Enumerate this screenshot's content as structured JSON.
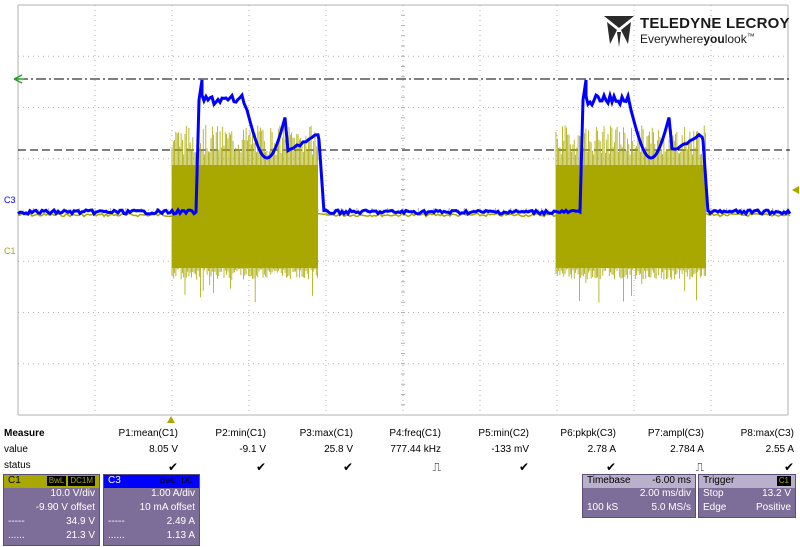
{
  "brand": {
    "name": "TELEDYNE LECROY",
    "tagline_pre": "Everywhere",
    "tagline_bold": "you",
    "tagline_post": "look",
    "tm": "™"
  },
  "channels": {
    "c3_label": "C3",
    "c1_label": "C1",
    "c1_color": "#a8a800",
    "c3_color": "#0000ff"
  },
  "measure": {
    "header": "Measure",
    "row_labels": {
      "value": "value",
      "status": "status"
    },
    "params": [
      {
        "name": "P1:mean(C1)",
        "value": "8.05 V",
        "status": "✔"
      },
      {
        "name": "P2:min(C1)",
        "value": "-9.1 V",
        "status": "✔"
      },
      {
        "name": "P3:max(C1)",
        "value": "25.8 V",
        "status": "✔"
      },
      {
        "name": "P4:freq(C1)",
        "value": "777.44 kHz",
        "status": "⎍"
      },
      {
        "name": "P5:min(C2)",
        "value": "-133 mV",
        "status": "✔"
      },
      {
        "name": "P6:pkpk(C3)",
        "value": "2.78 A",
        "status": "✔"
      },
      {
        "name": "P7:ampl(C3)",
        "value": "2.784 A",
        "status": "⎍"
      },
      {
        "name": "P8:max(C3)",
        "value": "2.55 A",
        "status": "✔"
      }
    ]
  },
  "c1_box": {
    "name": "C1",
    "tag1": "BwL",
    "tag2": "DC1M",
    "vdiv": "10.0 V/div",
    "offset": "-9.90 V offset",
    "cursor1": "34.9 V",
    "cursor2": "21.3 V"
  },
  "c3_box": {
    "name": "C3",
    "tag1": "BwL",
    "tag2": "DC",
    "adiv": "1.00 A/div",
    "offset": "10 mA offset",
    "cursor1": "2.49 A",
    "cursor2": "1.13 A"
  },
  "cursor_marks": {
    "a": "-----",
    "b": "......"
  },
  "timebase": {
    "label": "Timebase",
    "delay": "-6.00 ms",
    "per_div": "2.00 ms/div",
    "samples": "100 kS",
    "rate": "5.0 MS/s"
  },
  "trigger": {
    "label": "Trigger",
    "source": "C1",
    "mode": "Stop",
    "level": "13.2 V",
    "type": "Edge",
    "slope": "Positive"
  }
}
